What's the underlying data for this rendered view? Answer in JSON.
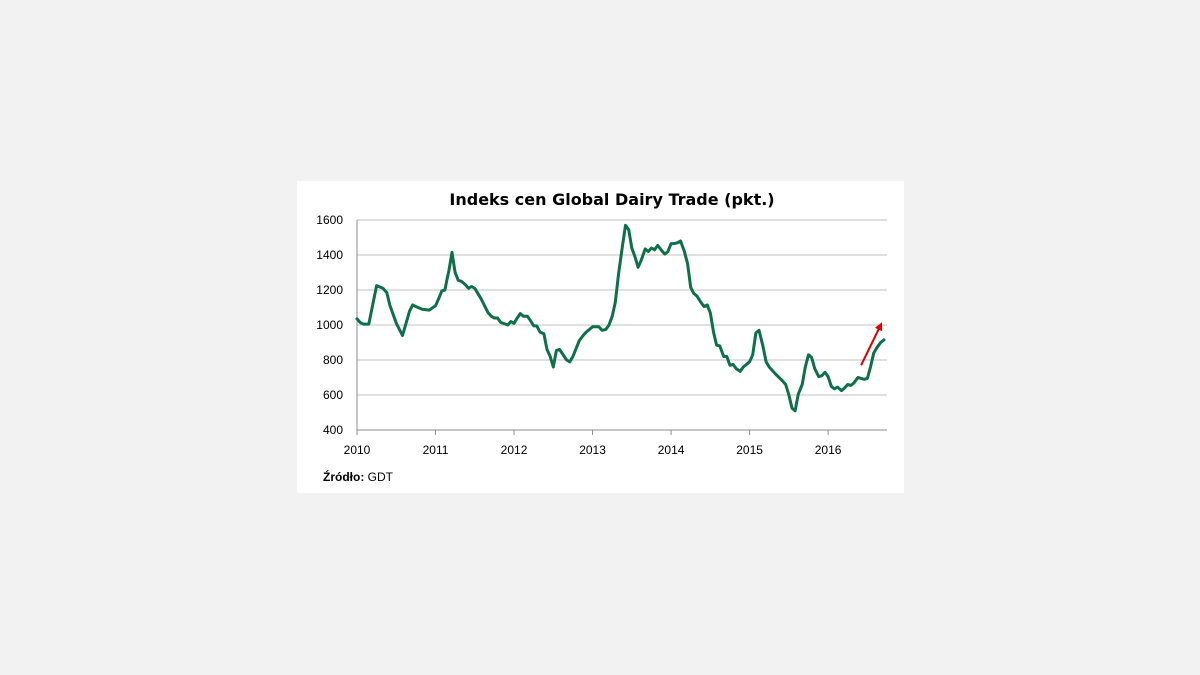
{
  "chart_data": {
    "type": "line",
    "title": "Indeks cen Global Dairy Trade (pkt.)",
    "xlabel": "",
    "ylabel": "",
    "xlim": [
      2010,
      2016.75
    ],
    "ylim": [
      400,
      1600
    ],
    "y_ticks": [
      400,
      600,
      800,
      1000,
      1200,
      1400,
      1600
    ],
    "x_ticks": [
      2010,
      2011,
      2012,
      2013,
      2014,
      2015,
      2016
    ],
    "x_tick_labels": [
      "2010",
      "2011",
      "2012",
      "2013",
      "2014",
      "2015",
      "2016"
    ],
    "grid": true,
    "legend": "none",
    "colors": {
      "line": "#0e7048",
      "arrow": "#e00000",
      "grid": "#c0c0c0"
    },
    "annotation": {
      "type": "arrow",
      "from": [
        2016.42,
        770
      ],
      "to": [
        2016.67,
        1000
      ]
    },
    "series": [
      {
        "x": [
          2010.0,
          2010.04,
          2010.08,
          2010.15,
          2010.25,
          2010.33,
          2010.38,
          2010.42,
          2010.5,
          2010.58,
          2010.67,
          2010.71,
          2010.75,
          2010.83,
          2010.92,
          2011.0,
          2011.05,
          2011.08,
          2011.12,
          2011.15,
          2011.17,
          2011.21,
          2011.25,
          2011.29,
          2011.33,
          2011.38,
          2011.42,
          2011.46,
          2011.5,
          2011.58,
          2011.67,
          2011.71,
          2011.75,
          2011.79,
          2011.83,
          2011.92,
          2011.96,
          2012.0,
          2012.04,
          2012.08,
          2012.12,
          2012.17,
          2012.21,
          2012.25,
          2012.29,
          2012.33,
          2012.38,
          2012.42,
          2012.46,
          2012.5,
          2012.54,
          2012.58,
          2012.67,
          2012.71,
          2012.75,
          2012.83,
          2012.88,
          2012.92,
          2013.0,
          2013.08,
          2013.12,
          2013.17,
          2013.21,
          2013.25,
          2013.29,
          2013.33,
          2013.38,
          2013.42,
          2013.46,
          2013.5,
          2013.54,
          2013.58,
          2013.62,
          2013.67,
          2013.71,
          2013.75,
          2013.79,
          2013.83,
          2013.88,
          2013.92,
          2013.96,
          2014.0,
          2014.04,
          2014.08,
          2014.12,
          2014.17,
          2014.21,
          2014.25,
          2014.29,
          2014.33,
          2014.38,
          2014.42,
          2014.46,
          2014.5,
          2014.54,
          2014.58,
          2014.62,
          2014.67,
          2014.71,
          2014.75,
          2014.79,
          2014.83,
          2014.88,
          2014.92,
          2014.96,
          2015.0,
          2015.04,
          2015.08,
          2015.12,
          2015.17,
          2015.21,
          2015.25,
          2015.33,
          2015.42,
          2015.46,
          2015.5,
          2015.54,
          2015.58,
          2015.62,
          2015.67,
          2015.71,
          2015.75,
          2015.79,
          2015.83,
          2015.88,
          2015.92,
          2015.96,
          2016.0,
          2016.04,
          2016.08,
          2016.12,
          2016.17,
          2016.21,
          2016.25,
          2016.29,
          2016.33,
          2016.38,
          2016.42,
          2016.46,
          2016.5,
          2016.54,
          2016.58,
          2016.62,
          2016.67,
          2016.71
        ],
        "y": [
          1035,
          1015,
          1005,
          1005,
          1225,
          1210,
          1185,
          1110,
          1010,
          940,
          1080,
          1115,
          1105,
          1090,
          1085,
          1110,
          1160,
          1195,
          1200,
          1270,
          1310,
          1415,
          1300,
          1255,
          1250,
          1230,
          1210,
          1220,
          1210,
          1150,
          1070,
          1050,
          1040,
          1040,
          1015,
          1000,
          1020,
          1010,
          1040,
          1065,
          1050,
          1050,
          1025,
          995,
          995,
          960,
          950,
          860,
          820,
          760,
          855,
          860,
          800,
          790,
          820,
          910,
          940,
          960,
          990,
          990,
          970,
          975,
          1000,
          1050,
          1130,
          1290,
          1450,
          1570,
          1545,
          1440,
          1390,
          1330,
          1370,
          1435,
          1420,
          1440,
          1430,
          1455,
          1425,
          1405,
          1420,
          1465,
          1465,
          1470,
          1480,
          1420,
          1350,
          1215,
          1180,
          1165,
          1130,
          1105,
          1115,
          1070,
          960,
          885,
          880,
          820,
          820,
          770,
          775,
          750,
          735,
          760,
          775,
          790,
          830,
          955,
          970,
          880,
          790,
          760,
          720,
          680,
          660,
          600,
          525,
          510,
          605,
          660,
          760,
          830,
          815,
          750,
          705,
          710,
          730,
          705,
          650,
          635,
          645,
          625,
          640,
          660,
          655,
          670,
          700,
          695,
          690,
          695,
          760,
          840,
          870,
          900,
          915
        ]
      }
    ]
  },
  "source": {
    "label": "Źródło:",
    "value": "GDT"
  }
}
